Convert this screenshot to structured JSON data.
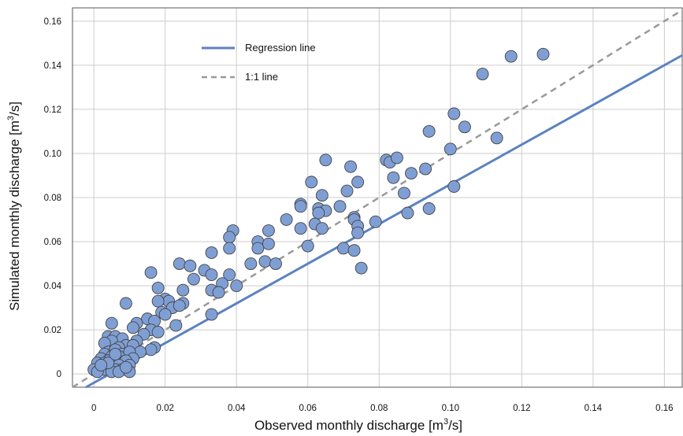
{
  "chart_data": {
    "type": "scatter",
    "xlabel": "Observed monthly discharge [m",
    "xlabel_sup": "3",
    "xlabel_end": "/s]",
    "ylabel": "Simulated monthly discharge [m",
    "ylabel_sup": "3",
    "ylabel_end": "/s]",
    "xlim": [
      -0.006,
      0.165
    ],
    "ylim": [
      -0.006,
      0.166
    ],
    "x_ticks": [
      "0",
      "0.02",
      "0.04",
      "0.06",
      "0.08",
      "0.10",
      "0.12",
      "0.14",
      "0.16"
    ],
    "y_ticks": [
      "0",
      "0.02",
      "0.04",
      "0.06",
      "0.08",
      "0.10",
      "0.12",
      "0.14",
      "0.16"
    ],
    "grid": true,
    "legend_position": "top-left",
    "colors": {
      "points": "#7f9fd4",
      "point_edge": "#444444",
      "regression": "#5b82c0",
      "one_to_one": "#999999"
    },
    "series": [
      {
        "name": "Regression line",
        "type": "line",
        "style": "solid",
        "slope": 0.9,
        "intercept": -0.004
      },
      {
        "name": "1:1 line",
        "type": "line",
        "style": "dashed",
        "slope": 1.0,
        "intercept": 0.0
      },
      {
        "type": "scatter",
        "points": [
          [
            0.126,
            0.145
          ],
          [
            0.117,
            0.144
          ],
          [
            0.109,
            0.136
          ],
          [
            0.101,
            0.118
          ],
          [
            0.104,
            0.112
          ],
          [
            0.094,
            0.11
          ],
          [
            0.113,
            0.107
          ],
          [
            0.1,
            0.102
          ],
          [
            0.065,
            0.097
          ],
          [
            0.082,
            0.097
          ],
          [
            0.083,
            0.096
          ],
          [
            0.085,
            0.098
          ],
          [
            0.072,
            0.094
          ],
          [
            0.093,
            0.093
          ],
          [
            0.089,
            0.091
          ],
          [
            0.084,
            0.089
          ],
          [
            0.061,
            0.087
          ],
          [
            0.074,
            0.087
          ],
          [
            0.101,
            0.085
          ],
          [
            0.071,
            0.083
          ],
          [
            0.087,
            0.082
          ],
          [
            0.064,
            0.081
          ],
          [
            0.058,
            0.077
          ],
          [
            0.058,
            0.076
          ],
          [
            0.063,
            0.075
          ],
          [
            0.069,
            0.076
          ],
          [
            0.094,
            0.075
          ],
          [
            0.065,
            0.074
          ],
          [
            0.063,
            0.073
          ],
          [
            0.088,
            0.073
          ],
          [
            0.073,
            0.071
          ],
          [
            0.073,
            0.07
          ],
          [
            0.054,
            0.07
          ],
          [
            0.079,
            0.069
          ],
          [
            0.062,
            0.068
          ],
          [
            0.074,
            0.067
          ],
          [
            0.064,
            0.066
          ],
          [
            0.058,
            0.066
          ],
          [
            0.039,
            0.065
          ],
          [
            0.049,
            0.065
          ],
          [
            0.074,
            0.064
          ],
          [
            0.038,
            0.062
          ],
          [
            0.046,
            0.06
          ],
          [
            0.049,
            0.059
          ],
          [
            0.06,
            0.058
          ],
          [
            0.038,
            0.057
          ],
          [
            0.046,
            0.057
          ],
          [
            0.07,
            0.057
          ],
          [
            0.073,
            0.056
          ],
          [
            0.033,
            0.055
          ],
          [
            0.048,
            0.051
          ],
          [
            0.024,
            0.05
          ],
          [
            0.044,
            0.05
          ],
          [
            0.051,
            0.05
          ],
          [
            0.027,
            0.049
          ],
          [
            0.031,
            0.047
          ],
          [
            0.075,
            0.048
          ],
          [
            0.016,
            0.046
          ],
          [
            0.033,
            0.045
          ],
          [
            0.038,
            0.045
          ],
          [
            0.028,
            0.043
          ],
          [
            0.036,
            0.041
          ],
          [
            0.04,
            0.04
          ],
          [
            0.018,
            0.039
          ],
          [
            0.033,
            0.038
          ],
          [
            0.035,
            0.037
          ],
          [
            0.025,
            0.038
          ],
          [
            0.02,
            0.034
          ],
          [
            0.021,
            0.033
          ],
          [
            0.018,
            0.033
          ],
          [
            0.025,
            0.032
          ],
          [
            0.009,
            0.032
          ],
          [
            0.022,
            0.03
          ],
          [
            0.024,
            0.031
          ],
          [
            0.019,
            0.028
          ],
          [
            0.033,
            0.027
          ],
          [
            0.02,
            0.027
          ],
          [
            0.015,
            0.025
          ],
          [
            0.017,
            0.024
          ],
          [
            0.012,
            0.023
          ],
          [
            0.005,
            0.023
          ],
          [
            0.023,
            0.022
          ],
          [
            0.011,
            0.021
          ],
          [
            0.016,
            0.02
          ],
          [
            0.014,
            0.018
          ],
          [
            0.018,
            0.019
          ],
          [
            0.004,
            0.017
          ],
          [
            0.006,
            0.017
          ],
          [
            0.008,
            0.016
          ],
          [
            0.012,
            0.015
          ],
          [
            0.005,
            0.015
          ],
          [
            0.003,
            0.014
          ],
          [
            0.009,
            0.013
          ],
          [
            0.011,
            0.013
          ],
          [
            0.017,
            0.012
          ],
          [
            0.007,
            0.012
          ],
          [
            0.016,
            0.011
          ],
          [
            0.013,
            0.01
          ],
          [
            0.004,
            0.01
          ],
          [
            0.006,
            0.011
          ],
          [
            0.008,
            0.009
          ],
          [
            0.01,
            0.01
          ],
          [
            0.003,
            0.009
          ],
          [
            0.005,
            0.008
          ],
          [
            0.007,
            0.008
          ],
          [
            0.011,
            0.007
          ],
          [
            0.002,
            0.007
          ],
          [
            0.004,
            0.006
          ],
          [
            0.006,
            0.006
          ],
          [
            0.009,
            0.006
          ],
          [
            0.001,
            0.005
          ],
          [
            0.003,
            0.005
          ],
          [
            0.005,
            0.004
          ],
          [
            0.007,
            0.004
          ],
          [
            0.01,
            0.004
          ],
          [
            0.002,
            0.003
          ],
          [
            0.004,
            0.003
          ],
          [
            0.006,
            0.002
          ],
          [
            0.008,
            0.002
          ],
          [
            0.0,
            0.002
          ],
          [
            0.003,
            0.002
          ],
          [
            0.005,
            0.001
          ],
          [
            0.007,
            0.001
          ],
          [
            0.01,
            0.001
          ],
          [
            0.001,
            0.001
          ],
          [
            0.004,
            0.005
          ],
          [
            0.006,
            0.009
          ],
          [
            0.009,
            0.003
          ],
          [
            0.002,
            0.004
          ]
        ]
      }
    ]
  }
}
